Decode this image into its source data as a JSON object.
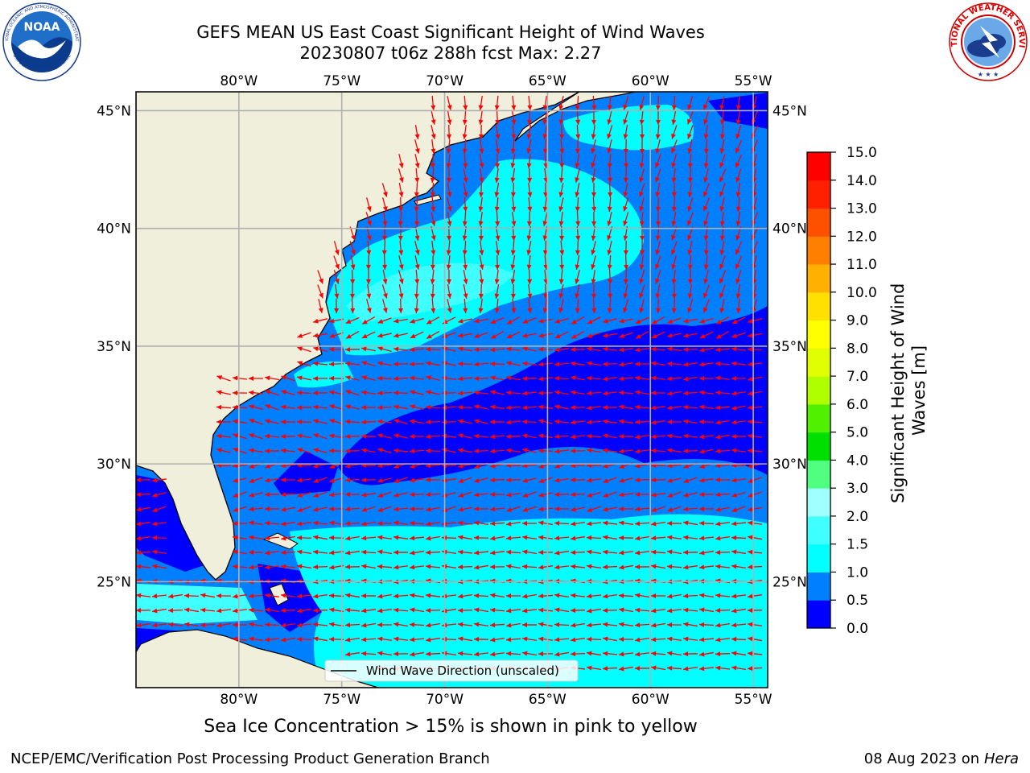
{
  "title": {
    "line1": "GEFS MEAN US East Coast Significant Height of Wind Waves",
    "line2": "20230807 t06z 288h fcst   Max: 2.27"
  },
  "logos": {
    "left": {
      "text": "NOAA",
      "ring_top": "NATIONAL OCEANIC AND ATMOSPHERIC ADMINISTRATION",
      "ring_bottom": "U.S. DEPARTMENT OF COMMERCE",
      "icon": "noaa-logo-icon"
    },
    "right": {
      "ring_text": "NATIONAL WEATHER SERVICE",
      "icon": "nws-logo-icon"
    }
  },
  "map": {
    "lon_labels": [
      "80°W",
      "75°W",
      "70°W",
      "65°W",
      "60°W",
      "55°W"
    ],
    "lat_labels": [
      "45°N",
      "40°N",
      "35°N",
      "30°N",
      "25°N"
    ],
    "lon_values": [
      -80,
      -75,
      -70,
      -65,
      -60,
      -55
    ],
    "lat_values": [
      45,
      40,
      35,
      30,
      25
    ],
    "extent": {
      "lon_min": -85,
      "lon_max": -54.3,
      "lat_min": 20.5,
      "lat_max": 45.8
    },
    "legend_label": "Wind Wave Direction (unscaled)",
    "colors": {
      "land": "#efefdc",
      "grid": "#b0b0b0",
      "arrow": "#ff0000",
      "coast": "#000000"
    }
  },
  "colorbar": {
    "label": "Significant Height of Wind Waves [m]",
    "ticks": [
      "0.0",
      "0.5",
      "1.0",
      "1.5",
      "2.0",
      "3.0",
      "4.0",
      "5.0",
      "6.0",
      "7.0",
      "8.0",
      "9.0",
      "10.0",
      "11.0",
      "12.0",
      "13.0",
      "14.0",
      "15.0"
    ],
    "colors": [
      "#0000ff",
      "#0080ff",
      "#00ffff",
      "#40ffff",
      "#a0ffff",
      "#50ff80",
      "#00e000",
      "#50f000",
      "#b0ff00",
      "#e0ff00",
      "#ffff00",
      "#ffe000",
      "#ffb000",
      "#ff8000",
      "#ff5000",
      "#ff2000",
      "#ff0000"
    ]
  },
  "chart_data": {
    "type": "heatmap",
    "title": "GEFS MEAN US East Coast Significant Height of Wind Waves",
    "subtitle": "20230807 t06z 288h fcst   Max: 2.27",
    "variable": "Significant Height of Wind Waves [m]",
    "max": 2.27,
    "levels": [
      0.0,
      0.5,
      1.0,
      1.5,
      2.0,
      3.0,
      4.0,
      5.0,
      6.0,
      7.0,
      8.0,
      9.0,
      10.0,
      11.0,
      12.0,
      13.0,
      14.0,
      15.0
    ],
    "xlim": [
      -85,
      -54.3
    ],
    "ylim": [
      20.5,
      45.8
    ]
  },
  "footer": {
    "caption": "Sea Ice Concentration > 15% is shown in pink to yellow",
    "credit": "NCEP/EMC/Verification Post Processing Product Generation Branch",
    "date": "08 Aug 2023 on",
    "machine": "Hera"
  }
}
